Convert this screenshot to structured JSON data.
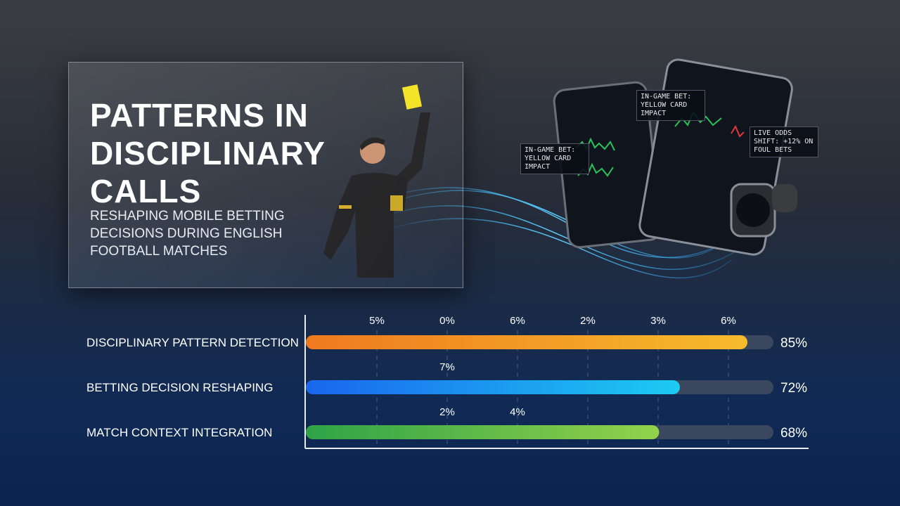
{
  "hero": {
    "title": "PATTERNS IN DISCIPLINARY CALLS",
    "subtitle": "RESHAPING MOBILE BETTING DECISIONS DURING ENGLISH FOOTBALL MATCHES"
  },
  "callouts": [
    "IN-GAME BET: YELLOW CARD IMPACT",
    "IN-GAME BET: YELLOW CARD IMPACT",
    "LIVE ODDS SHIFT: +12% ON FOUL BETS"
  ],
  "chart_data": {
    "type": "bar",
    "orientation": "horizontal",
    "categories": [
      "DISCIPLINARY PATTERN DETECTION",
      "BETTING DECISION RESHAPING",
      "MATCH CONTEXT INTEGRATION"
    ],
    "values": [
      85,
      72,
      68
    ],
    "value_labels": [
      "85%",
      "72%",
      "68%"
    ],
    "colors": [
      [
        "#ef7a1e",
        "#f6bb2c"
      ],
      [
        "#1a66ee",
        "#1ccbf2"
      ],
      [
        "#2ea347",
        "#93d24a"
      ]
    ],
    "xlim": [
      0,
      90
    ],
    "annotations": [
      "5%",
      "0%",
      "6%",
      "2%",
      "3%",
      "6%",
      "7%",
      "2%",
      "4%"
    ]
  }
}
